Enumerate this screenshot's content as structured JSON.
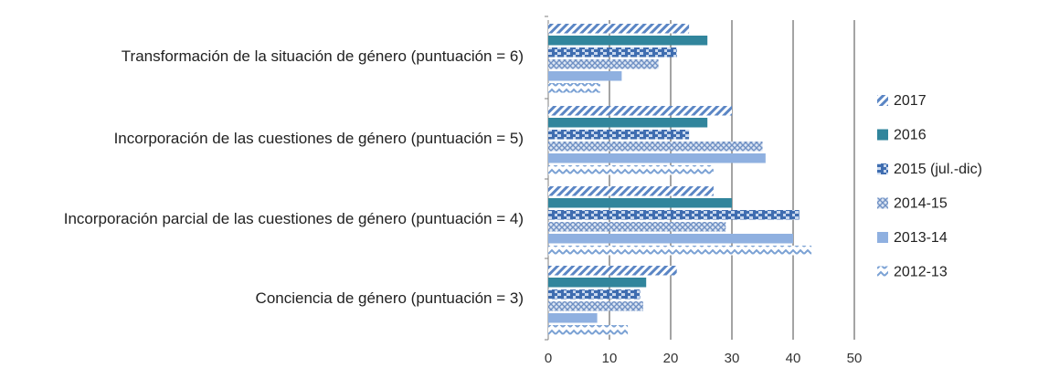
{
  "chart_data": {
    "type": "bar",
    "orientation": "horizontal",
    "title": "",
    "xlabel": "",
    "ylabel": "",
    "xlim": [
      0,
      50
    ],
    "xticks": [
      "0",
      "10",
      "20",
      "30",
      "40",
      "50"
    ],
    "grid": true,
    "legend_position": "right",
    "categories": [
      "Transformación de la situación de género (puntuación = 6)",
      "Incorporación de las cuestiones de género (puntuación = 5)",
      "Incorporación parcial de las cuestiones de género (puntuación = 4)",
      "Conciencia de género (puntuación = 3)"
    ],
    "series": [
      {
        "name": "2017",
        "values": [
          23,
          30,
          27,
          21
        ],
        "color": "#5b86c5",
        "pattern": "diagonal-stripes"
      },
      {
        "name": "2016",
        "values": [
          26,
          26,
          30,
          16
        ],
        "color": "#31859c",
        "pattern": "solid"
      },
      {
        "name": "2015 (jul.-dic)",
        "values": [
          21,
          23,
          41,
          15
        ],
        "color": "#3f6db0",
        "pattern": "dashed-horizontal"
      },
      {
        "name": "2014-15",
        "values": [
          18,
          35,
          29,
          15.5
        ],
        "color": "#6f90c4",
        "pattern": "crosshatch"
      },
      {
        "name": "2013-14",
        "values": [
          12,
          35.5,
          40,
          8
        ],
        "color": "#8fb0e0",
        "pattern": "solid-light"
      },
      {
        "name": "2012-13",
        "values": [
          8.5,
          27,
          43,
          13
        ],
        "color": "#7aa1d4",
        "pattern": "zigzag"
      }
    ]
  }
}
